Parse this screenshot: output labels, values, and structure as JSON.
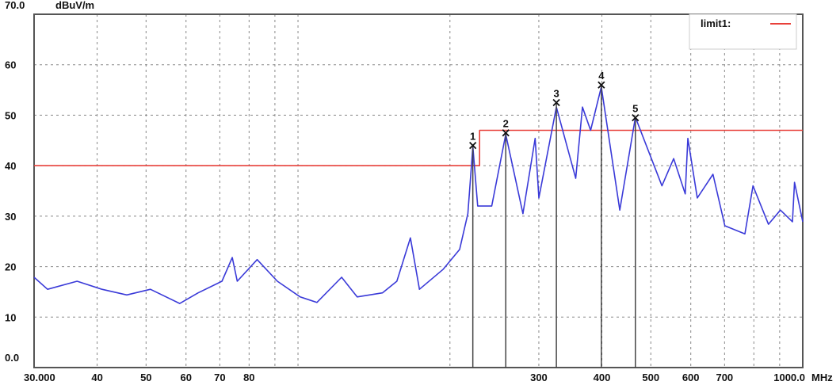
{
  "chart_data": {
    "type": "line",
    "title": "",
    "ylabel": "dBuV/m",
    "xlabel": "MHz",
    "x_scale": "log",
    "xlim": [
      30,
      1000
    ],
    "ylim": [
      0,
      70
    ],
    "grid": true,
    "y_ticks": [
      {
        "v": 0,
        "label": "0.0"
      },
      {
        "v": 10,
        "label": "10"
      },
      {
        "v": 20,
        "label": "20"
      },
      {
        "v": 30,
        "label": "30"
      },
      {
        "v": 40,
        "label": "40"
      },
      {
        "v": 50,
        "label": "50"
      },
      {
        "v": 60,
        "label": "60"
      },
      {
        "v": 70,
        "label": "70.0"
      }
    ],
    "x_ticks": [
      {
        "v": 30,
        "label": "30.000"
      },
      {
        "v": 40,
        "label": "40"
      },
      {
        "v": 50,
        "label": "50"
      },
      {
        "v": 60,
        "label": "60"
      },
      {
        "v": 70,
        "label": "70"
      },
      {
        "v": 80,
        "label": "80"
      },
      {
        "v": 300,
        "label": "300"
      },
      {
        "v": 400,
        "label": "400"
      },
      {
        "v": 500,
        "label": "500"
      },
      {
        "v": 600,
        "label": "600"
      },
      {
        "v": 700,
        "label": "700"
      },
      {
        "v": 1000,
        "label": "1000.0"
      }
    ],
    "x_grid": [
      40,
      50,
      60,
      70,
      80,
      90,
      100,
      200,
      300,
      400,
      500,
      600,
      700,
      800,
      900
    ],
    "legend": {
      "position": "top-right",
      "entries": [
        {
          "name": "limit1:",
          "color": "#e8403a"
        }
      ]
    },
    "series": [
      {
        "name": "limit1:",
        "color": "#e8403a",
        "points": [
          [
            30,
            40
          ],
          [
            229,
            40
          ],
          [
            229,
            47
          ],
          [
            1000,
            47
          ]
        ]
      },
      {
        "color": "#3a3ad8",
        "points": [
          [
            30,
            17.9
          ],
          [
            31.9,
            15.5
          ],
          [
            36.5,
            17.1
          ],
          [
            40.9,
            15.5
          ],
          [
            45.8,
            14.4
          ],
          [
            51,
            15.5
          ],
          [
            58.3,
            12.7
          ],
          [
            63.4,
            14.8
          ],
          [
            70.7,
            17.1
          ],
          [
            74.1,
            21.8
          ],
          [
            75.8,
            17.1
          ],
          [
            83,
            21.4
          ],
          [
            91,
            17.1
          ],
          [
            101,
            14
          ],
          [
            109,
            12.9
          ],
          [
            122,
            17.9
          ],
          [
            131,
            14
          ],
          [
            147,
            14.8
          ],
          [
            157,
            17.1
          ],
          [
            167,
            25.7
          ],
          [
            174,
            15.5
          ],
          [
            194,
            19.5
          ],
          [
            209,
            23.4
          ],
          [
            217,
            30.5
          ],
          [
            222,
            43.8
          ],
          [
            227,
            32
          ],
          [
            242,
            32
          ],
          [
            258,
            46.2
          ],
          [
            279,
            30.5
          ],
          [
            295,
            45.4
          ],
          [
            300,
            33.6
          ],
          [
            325,
            51.6
          ],
          [
            355,
            37.5
          ],
          [
            366,
            51.6
          ],
          [
            380,
            47
          ],
          [
            399,
            55.6
          ],
          [
            434,
            31.2
          ],
          [
            466,
            49.6
          ],
          [
            526,
            36
          ],
          [
            555,
            41.4
          ],
          [
            585,
            34.4
          ],
          [
            592,
            45.4
          ],
          [
            618,
            33.6
          ],
          [
            664,
            38.3
          ],
          [
            701,
            28.1
          ],
          [
            768,
            26.5
          ],
          [
            797,
            36
          ],
          [
            855,
            28.4
          ],
          [
            903,
            31.2
          ],
          [
            954,
            28.9
          ],
          [
            963,
            36.7
          ],
          [
            1000,
            28.9
          ]
        ]
      }
    ],
    "markers": [
      {
        "label": "1",
        "freq": 222,
        "level": 44
      },
      {
        "label": "2",
        "freq": 258,
        "level": 46.5
      },
      {
        "label": "3",
        "freq": 325,
        "level": 52.5
      },
      {
        "label": "4",
        "freq": 399,
        "level": 56
      },
      {
        "label": "5",
        "freq": 466,
        "level": 49.5
      }
    ]
  }
}
